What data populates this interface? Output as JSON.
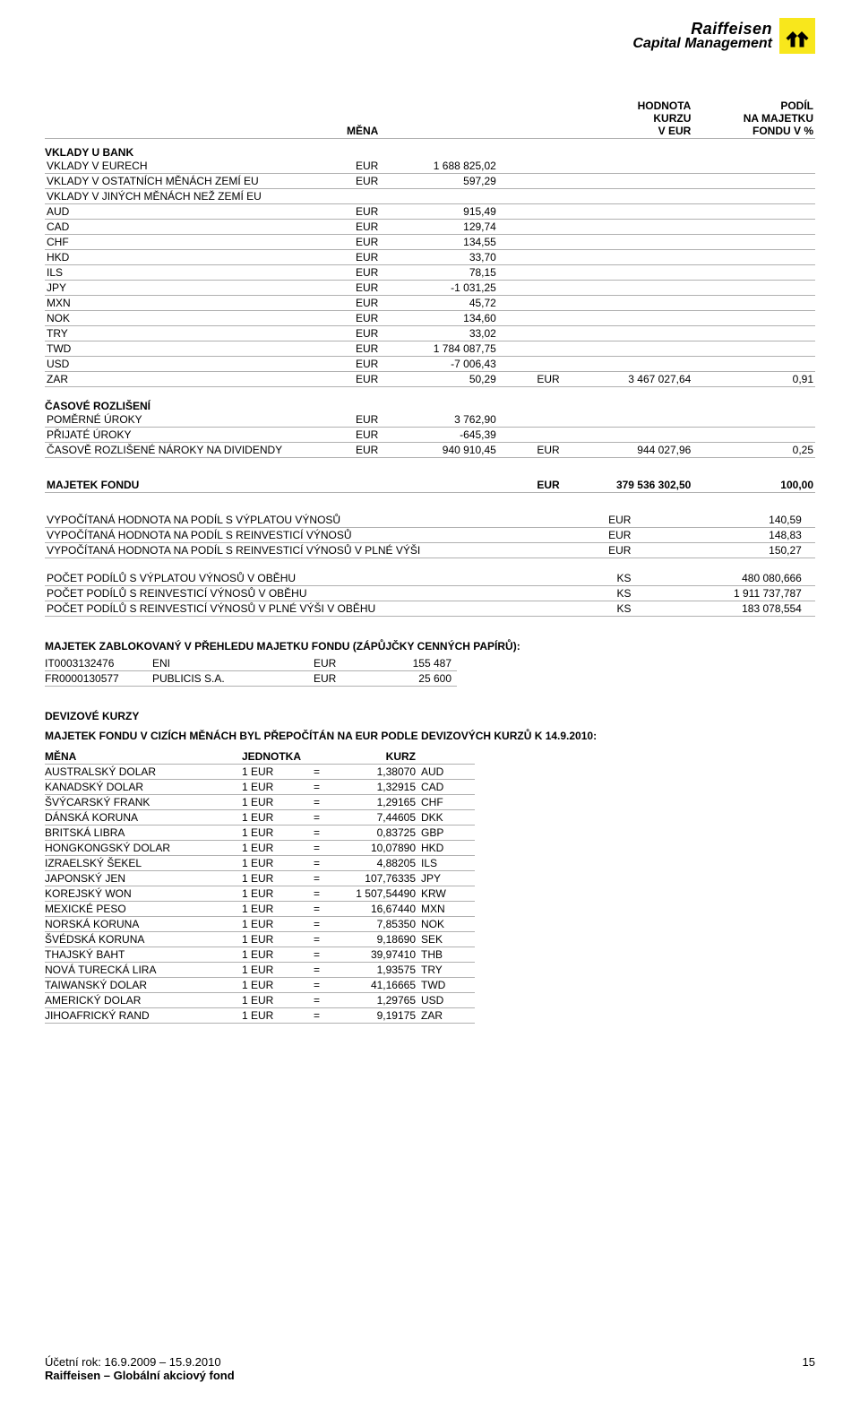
{
  "logo": {
    "top": "Raiffeisen",
    "sub": "Capital Management"
  },
  "headers": {
    "mena": "MĚNA",
    "hodnota1": "HODNOTA",
    "hodnota2": "KURZU",
    "hodnota3": "V EUR",
    "podil1": "PODÍL",
    "podil2": "NA MAJETKU",
    "podil3": "FONDU V %"
  },
  "bank": {
    "title": "VKLADY U BANK",
    "rows": [
      {
        "label": "VKLADY V EURECH",
        "cur": "EUR",
        "val": "1 688 825,02"
      },
      {
        "label": "VKLADY V OSTATNÍCH MĚNÁCH ZEMÍ EU",
        "cur": "EUR",
        "val": "597,29"
      },
      {
        "label": "VKLADY V JINÝCH MĚNÁCH NEŽ ZEMÍ EU",
        "cur": "",
        "val": ""
      },
      {
        "label": "AUD",
        "cur": "EUR",
        "val": "915,49"
      },
      {
        "label": "CAD",
        "cur": "EUR",
        "val": "129,74"
      },
      {
        "label": "CHF",
        "cur": "EUR",
        "val": "134,55"
      },
      {
        "label": "HKD",
        "cur": "EUR",
        "val": "33,70"
      },
      {
        "label": "ILS",
        "cur": "EUR",
        "val": "78,15"
      },
      {
        "label": "JPY",
        "cur": "EUR",
        "val": "-1 031,25"
      },
      {
        "label": "MXN",
        "cur": "EUR",
        "val": "45,72"
      },
      {
        "label": "NOK",
        "cur": "EUR",
        "val": "134,60"
      },
      {
        "label": "TRY",
        "cur": "EUR",
        "val": "33,02"
      },
      {
        "label": "TWD",
        "cur": "EUR",
        "val": "1 784 087,75"
      },
      {
        "label": "USD",
        "cur": "EUR",
        "val": "-7 006,43"
      },
      {
        "label": "ZAR",
        "cur": "EUR",
        "val": "50,29",
        "eur": "EUR",
        "tot": "3 467 027,64",
        "pct": "0,91"
      }
    ]
  },
  "accr": {
    "title": "ČASOVÉ ROZLIŠENÍ",
    "rows": [
      {
        "label": "POMĚRNÉ ÚROKY",
        "cur": "EUR",
        "val": "3 762,90"
      },
      {
        "label": "PŘIJATÉ ÚROKY",
        "cur": "EUR",
        "val": "-645,39"
      },
      {
        "label": "ČASOVĚ ROZLIŠENÉ NÁROKY NA DIVIDENDY",
        "cur": "EUR",
        "val": "940 910,45",
        "eur": "EUR",
        "tot": "944 027,96",
        "pct": "0,25"
      }
    ]
  },
  "fund": {
    "label": "MAJETEK FONDU",
    "eur": "EUR",
    "tot": "379 536 302,50",
    "pct": "100,00"
  },
  "nav": {
    "rows": [
      {
        "label": "VYPOČÍTANÁ HODNOTA NA PODÍL S VÝPLATOU VÝNOSŮ",
        "cur": "EUR",
        "val": "140,59"
      },
      {
        "label": "VYPOČÍTANÁ HODNOTA NA PODÍL S REINVESTICÍ VÝNOSŮ",
        "cur": "EUR",
        "val": "148,83"
      },
      {
        "label": "VYPOČÍTANÁ HODNOTA NA PODÍL S REINVESTICÍ VÝNOSŮ V PLNÉ VÝŠI",
        "cur": "EUR",
        "val": "150,27"
      }
    ]
  },
  "shares": {
    "rows": [
      {
        "label": "POČET PODÍLŮ S VÝPLATOU VÝNOSŮ V OBĚHU",
        "cur": "KS",
        "val": "480 080,666"
      },
      {
        "label": "POČET PODÍLŮ S REINVESTICÍ VÝNOSŮ V OBĚHU",
        "cur": "KS",
        "val": "1 911 737,787"
      },
      {
        "label": "POČET PODÍLŮ S REINVESTICÍ VÝNOSŮ V PLNÉ VÝŠI V OBĚHU",
        "cur": "KS",
        "val": "183 078,554"
      }
    ]
  },
  "blocked": {
    "title": "MAJETEK ZABLOKOVANÝ V PŘEHLEDU MAJETKU FONDU (ZÁPŮJČKY CENNÝCH PAPÍRŮ):",
    "rows": [
      {
        "isin": "IT0003132476",
        "name": "ENI",
        "cur": "EUR",
        "val": "155 487"
      },
      {
        "isin": "FR0000130577",
        "name": "PUBLICIS S.A.",
        "cur": "EUR",
        "val": "25 600"
      }
    ]
  },
  "fx": {
    "title1": "DEVIZOVÉ KURZY",
    "title2": "MAJETEK FONDU V CIZÍCH MĚNÁCH BYL PŘEPOČÍTÁN NA EUR PODLE DEVIZOVÝCH KURZŮ K 14.9.2010:",
    "h_mena": "MĚNA",
    "h_jedn": "JEDNOTKA",
    "h_kurz": "KURZ",
    "rows": [
      {
        "name": "AUSTRALSKÝ DOLAR",
        "unit": "1 EUR",
        "eq": "=",
        "rate": "1,38070",
        "code": "AUD"
      },
      {
        "name": "KANADSKÝ DOLAR",
        "unit": "1 EUR",
        "eq": "=",
        "rate": "1,32915",
        "code": "CAD"
      },
      {
        "name": "ŠVÝCARSKÝ FRANK",
        "unit": "1 EUR",
        "eq": "=",
        "rate": "1,29165",
        "code": "CHF"
      },
      {
        "name": "DÁNSKÁ KORUNA",
        "unit": "1 EUR",
        "eq": "=",
        "rate": "7,44605",
        "code": "DKK"
      },
      {
        "name": "BRITSKÁ LIBRA",
        "unit": "1 EUR",
        "eq": "=",
        "rate": "0,83725",
        "code": "GBP"
      },
      {
        "name": "HONGKONGSKÝ DOLAR",
        "unit": "1 EUR",
        "eq": "=",
        "rate": "10,07890",
        "code": "HKD"
      },
      {
        "name": "IZRAELSKÝ ŠEKEL",
        "unit": "1 EUR",
        "eq": "=",
        "rate": "4,88205",
        "code": "ILS"
      },
      {
        "name": "JAPONSKÝ JEN",
        "unit": "1 EUR",
        "eq": "=",
        "rate": "107,76335",
        "code": "JPY"
      },
      {
        "name": "KOREJSKÝ WON",
        "unit": "1 EUR",
        "eq": "=",
        "rate": "1 507,54490",
        "code": "KRW"
      },
      {
        "name": "MEXICKÉ PESO",
        "unit": "1 EUR",
        "eq": "=",
        "rate": "16,67440",
        "code": "MXN"
      },
      {
        "name": "NORSKÁ KORUNA",
        "unit": "1 EUR",
        "eq": "=",
        "rate": "7,85350",
        "code": "NOK"
      },
      {
        "name": "ŠVÉDSKÁ KORUNA",
        "unit": "1 EUR",
        "eq": "=",
        "rate": "9,18690",
        "code": "SEK"
      },
      {
        "name": "THAJSKÝ BAHT",
        "unit": "1 EUR",
        "eq": "=",
        "rate": "39,97410",
        "code": "THB"
      },
      {
        "name": "NOVÁ TURECKÁ LIRA",
        "unit": "1 EUR",
        "eq": "=",
        "rate": "1,93575",
        "code": "TRY"
      },
      {
        "name": "TAIWANSKÝ DOLAR",
        "unit": "1 EUR",
        "eq": "=",
        "rate": "41,16665",
        "code": "TWD"
      },
      {
        "name": "AMERICKÝ DOLAR",
        "unit": "1 EUR",
        "eq": "=",
        "rate": "1,29765",
        "code": "USD"
      },
      {
        "name": "JIHOAFRICKÝ RAND",
        "unit": "1 EUR",
        "eq": "=",
        "rate": "9,19175",
        "code": "ZAR"
      }
    ]
  },
  "footer": {
    "period": "Účetní rok: 16.9.2009 – 15.9.2010",
    "page": "15",
    "fund": "Raiffeisen – Globální akciový fond"
  }
}
